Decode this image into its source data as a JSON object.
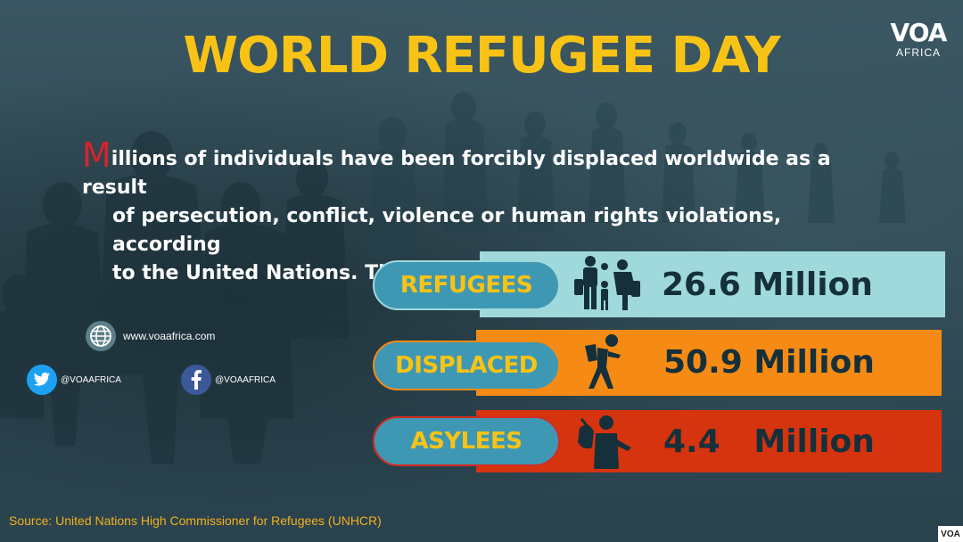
{
  "title": "WORLD REFUGEE DAY",
  "logo": {
    "mark": "VOA",
    "sub": "AFRICA"
  },
  "intro": {
    "dropcap": "M",
    "line1": "illions of individuals have been forcibly displaced worldwide as a result",
    "line2": "of persecution, conflict, violence or human rights violations, according",
    "line3": "to the United Nations. This includes:"
  },
  "contacts": {
    "website": "www.voaafrica.com",
    "twitter": "@VOAAFRICA",
    "facebook": "@VOAAFRICA"
  },
  "rows": [
    {
      "label": "REFUGEES",
      "value": "26.6 Million",
      "icon": "family-refugees-icon",
      "bar_color": "#9fd9dc",
      "border_color": "#9fd9dc"
    },
    {
      "label": "DISPLACED",
      "value": "50.9 Million",
      "icon": "person-with-bundle-icon",
      "bar_color": "#f58b14",
      "border_color": "#f58b14"
    },
    {
      "label": "ASYLEES",
      "value": "4.4   Million",
      "icon": "person-carrying-bag-icon",
      "bar_color": "#d6330f",
      "border_color": "#d42a24"
    }
  ],
  "source": "Source: United Nations High Commissioner for Refugees (UNHCR)",
  "corner_badge": "VOA",
  "colors": {
    "title": "#f9c315",
    "pill_bg": "#3f98b3",
    "source": "#f2b01e",
    "dropcap": "#d6242b"
  }
}
